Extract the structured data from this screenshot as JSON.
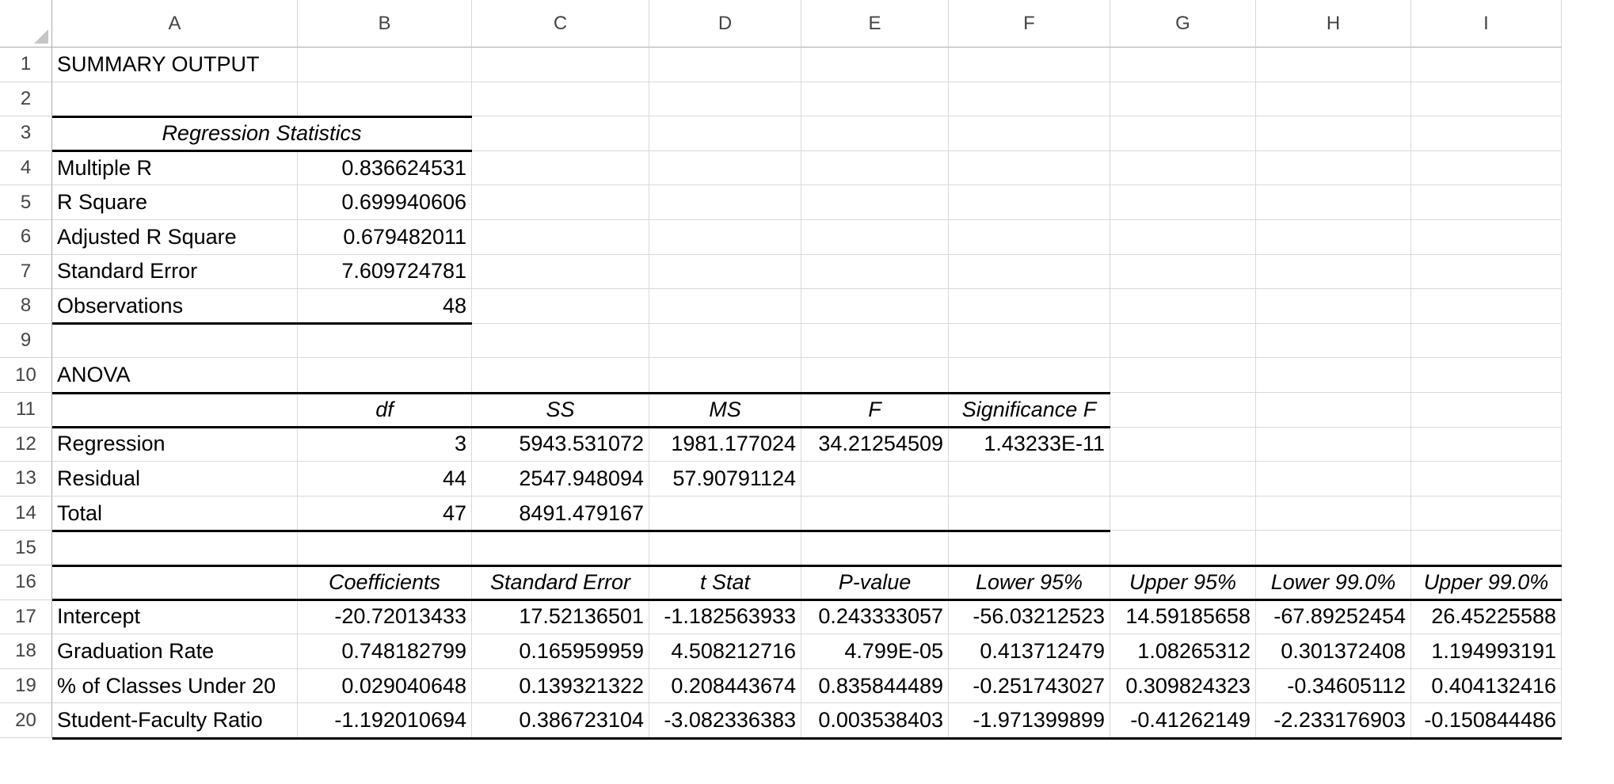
{
  "columns": [
    "A",
    "B",
    "C",
    "D",
    "E",
    "F",
    "G",
    "H",
    "I"
  ],
  "rows": [
    "1",
    "2",
    "3",
    "4",
    "5",
    "6",
    "7",
    "8",
    "9",
    "10",
    "11",
    "12",
    "13",
    "14",
    "15",
    "16",
    "17",
    "18",
    "19",
    "20"
  ],
  "summary": {
    "title": "SUMMARY OUTPUT",
    "regression_statistics_header": "Regression Statistics",
    "stats": [
      {
        "label": "Multiple R",
        "value": "0.836624531"
      },
      {
        "label": "R Square",
        "value": "0.699940606"
      },
      {
        "label": "Adjusted R Square",
        "value": "0.679482011"
      },
      {
        "label": "Standard Error",
        "value": "7.609724781"
      },
      {
        "label": "Observations",
        "value": "48"
      }
    ]
  },
  "anova": {
    "title": "ANOVA",
    "headers": [
      "df",
      "SS",
      "MS",
      "F",
      "Significance F"
    ],
    "rows": [
      {
        "label": "Regression",
        "values": [
          "3",
          "5943.531072",
          "1981.177024",
          "34.21254509",
          "1.43233E-11"
        ]
      },
      {
        "label": "Residual",
        "values": [
          "44",
          "2547.948094",
          "57.90791124",
          "",
          ""
        ]
      },
      {
        "label": "Total",
        "values": [
          "47",
          "8491.479167",
          "",
          "",
          ""
        ]
      }
    ]
  },
  "coefficients": {
    "headers": [
      "Coefficients",
      "Standard Error",
      "t Stat",
      "P-value",
      "Lower 95%",
      "Upper 95%",
      "Lower 99.0%",
      "Upper 99.0%"
    ],
    "rows": [
      {
        "label": "Intercept",
        "values": [
          "-20.72013433",
          "17.52136501",
          "-1.182563933",
          "0.243333057",
          "-56.03212523",
          "14.59185658",
          "-67.89252454",
          "26.45225588"
        ]
      },
      {
        "label": "Graduation Rate",
        "values": [
          "0.748182799",
          "0.165959959",
          "4.508212716",
          "4.799E-05",
          "0.413712479",
          "1.08265312",
          "0.301372408",
          "1.194993191"
        ]
      },
      {
        "label": "% of Classes Under 20",
        "values": [
          "0.029040648",
          "0.139321322",
          "0.208443674",
          "0.835844489",
          "-0.251743027",
          "0.309824323",
          "-0.34605112",
          "0.404132416"
        ]
      },
      {
        "label": "Student-Faculty Ratio",
        "values": [
          "-1.192010694",
          "0.386723104",
          "-3.082336383",
          "0.003538403",
          "-1.971399899",
          "-0.41262149",
          "-2.233176903",
          "-0.150844486"
        ]
      }
    ]
  }
}
